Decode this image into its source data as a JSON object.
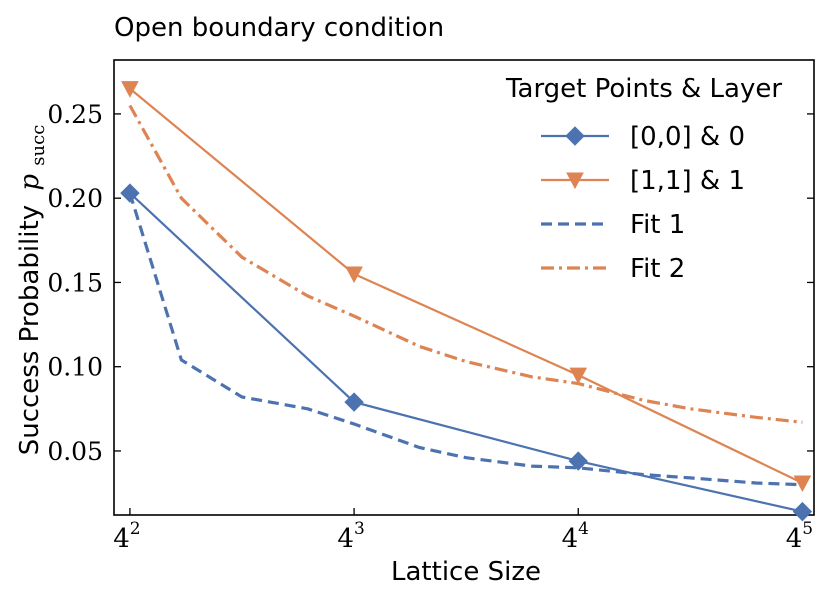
{
  "chart_data": {
    "type": "line",
    "title": "Open boundary condition",
    "xlabel": "Lattice Size",
    "ylabel": "Success Probability",
    "ylabel_symbol": "p",
    "ylabel_subscript": "succ",
    "xscale": "log",
    "xlim": [
      14.5,
      1100
    ],
    "ylim": [
      0.012,
      0.282
    ],
    "x_ticks": [
      {
        "value": 16,
        "base": "4",
        "exp": "2"
      },
      {
        "value": 64,
        "base": "4",
        "exp": "3"
      },
      {
        "value": 256,
        "base": "4",
        "exp": "4"
      },
      {
        "value": 1024,
        "base": "4",
        "exp": "5"
      }
    ],
    "y_ticks": [
      {
        "value": 0.05,
        "label": "0.05"
      },
      {
        "value": 0.1,
        "label": "0.10"
      },
      {
        "value": 0.15,
        "label": "0.15"
      },
      {
        "value": 0.2,
        "label": "0.20"
      },
      {
        "value": 0.25,
        "label": "0.25"
      }
    ],
    "legend_title": "Target Points & Layer",
    "legend_position": "top-right",
    "series": [
      {
        "name": "[0,0] & 0",
        "color": "#4c72b0",
        "style": "solid",
        "marker": "diamond",
        "x": [
          16,
          64,
          256,
          1024
        ],
        "y": [
          0.203,
          0.079,
          0.044,
          0.014
        ]
      },
      {
        "name": "[1,1] & 1",
        "color": "#dd8452",
        "style": "solid",
        "marker": "triangle-down",
        "x": [
          16,
          64,
          256,
          1024
        ],
        "y": [
          0.265,
          0.155,
          0.095,
          0.031
        ]
      },
      {
        "name": "Fit 1",
        "color": "#4c72b0",
        "style": "dashed",
        "marker": "none",
        "x": [
          16,
          22,
          32,
          48,
          64,
          96,
          128,
          192,
          256,
          384,
          512,
          768,
          1024
        ],
        "y": [
          0.203,
          0.104,
          0.082,
          0.075,
          0.066,
          0.052,
          0.046,
          0.041,
          0.04,
          0.036,
          0.034,
          0.031,
          0.03
        ]
      },
      {
        "name": "Fit 2",
        "color": "#dd8452",
        "style": "dashdot",
        "marker": "none",
        "x": [
          16,
          22,
          32,
          48,
          64,
          96,
          128,
          192,
          256,
          384,
          512,
          768,
          1024
        ],
        "y": [
          0.255,
          0.2,
          0.165,
          0.142,
          0.13,
          0.112,
          0.103,
          0.094,
          0.09,
          0.08,
          0.075,
          0.07,
          0.067
        ]
      }
    ]
  }
}
